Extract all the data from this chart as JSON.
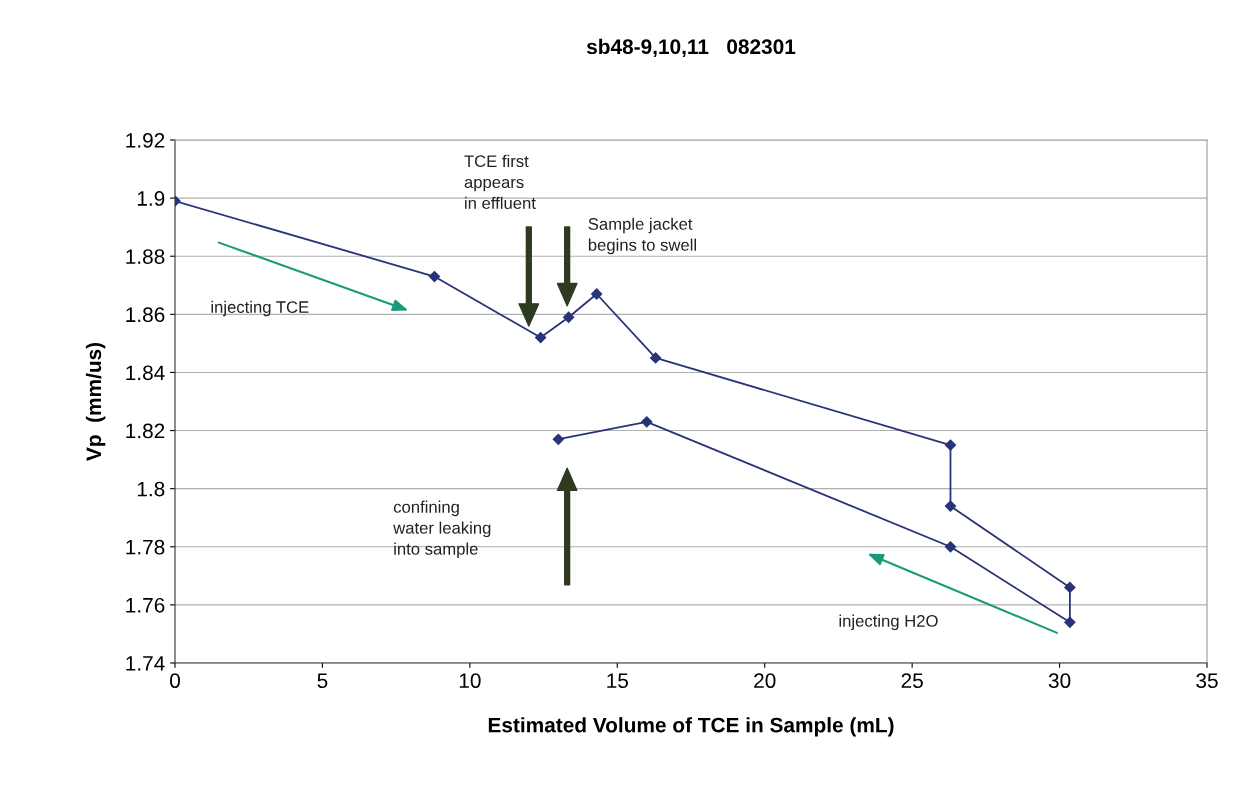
{
  "chart_data": {
    "type": "line",
    "title": "sb48-9,10,11   082301",
    "xlabel": "Estimated Volume of TCE in Sample (mL)",
    "ylabel": "Vp  (mm/us)",
    "x": [
      0,
      8.8,
      12.4,
      13.35,
      14.3,
      16.3,
      26.3,
      26.3,
      30.35,
      30.35,
      26.3,
      16.0,
      13.0
    ],
    "series": [
      {
        "color": "#283378",
        "values": [
          1.899,
          1.873,
          1.852,
          1.859,
          1.867,
          1.845,
          1.815,
          1.794,
          1.766,
          1.754,
          1.78,
          1.823,
          1.817
        ]
      }
    ],
    "xlim": [
      0,
      35
    ],
    "xticks": [
      0,
      5,
      10,
      15,
      20,
      25,
      30,
      35
    ],
    "ylim": [
      1.74,
      1.92
    ],
    "yticks": [
      1.74,
      1.76,
      1.78,
      1.8,
      1.82,
      1.84,
      1.86,
      1.88,
      1.9,
      1.92
    ],
    "grid": "y",
    "marker": "diamond",
    "line_style": "solid",
    "annotations": [
      "TCE first\nappears\nin effluent",
      "Sample jacket\nbegins to swell",
      "injecting TCE",
      "confining\nwater leaking\ninto sample",
      "injecting H2O"
    ]
  }
}
